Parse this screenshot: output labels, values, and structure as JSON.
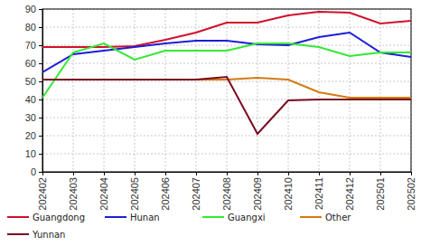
{
  "chart_data": {
    "type": "line",
    "categories": [
      "202402",
      "202403",
      "202404",
      "202405",
      "202406",
      "202407",
      "202408",
      "202409",
      "202410",
      "202411",
      "202412",
      "202501",
      "202502"
    ],
    "series": [
      {
        "name": "Guangdong",
        "color": "#d0102b",
        "values": [
          69,
          69,
          69,
          69.5,
          73,
          77,
          82.5,
          82.5,
          86.5,
          88.5,
          88,
          82,
          83.5
        ]
      },
      {
        "name": "Hunan",
        "color": "#1c1cd8",
        "values": [
          55,
          65,
          67,
          69,
          71,
          72.5,
          72.5,
          70.5,
          70,
          74.5,
          77,
          66,
          63.5
        ]
      },
      {
        "name": "Guangxi",
        "color": "#33e833",
        "values": [
          41,
          66,
          71,
          62,
          67,
          67,
          67,
          71,
          71,
          69,
          64,
          66,
          66
        ]
      },
      {
        "name": "Other",
        "color": "#d47a12",
        "values": [
          51,
          51,
          51,
          51,
          51,
          51,
          51,
          52,
          51,
          44,
          41,
          41,
          41
        ]
      },
      {
        "name": "Yunnan",
        "color": "#7a0a22",
        "values": [
          51,
          51,
          51,
          51,
          51,
          51,
          52.5,
          21,
          39.5,
          40,
          40,
          40,
          40
        ]
      }
    ],
    "ylim": [
      0,
      90
    ],
    "yticks": [
      0,
      10,
      20,
      30,
      40,
      50,
      60,
      70,
      80,
      90
    ],
    "grid": true,
    "legend": "bottom"
  }
}
